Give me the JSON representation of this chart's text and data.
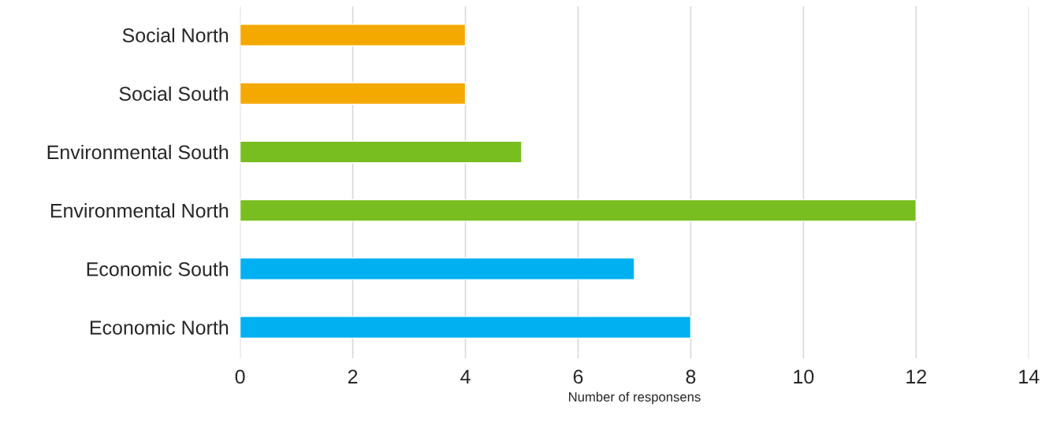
{
  "chart_data": {
    "type": "bar",
    "orientation": "horizontal",
    "categories": [
      "Social North",
      "Social South",
      "Environmental South",
      "Environmental North",
      "Economic South",
      "Economic North"
    ],
    "values": [
      4,
      4,
      5,
      12,
      7,
      8
    ],
    "colors": [
      "#f4a900",
      "#f4a900",
      "#78be20",
      "#78be20",
      "#00b0f0",
      "#00b0f0"
    ],
    "xlabel": "Number of responsens",
    "xlim": [
      0,
      14
    ],
    "xticks": [
      0,
      2,
      4,
      6,
      8,
      10,
      12,
      14
    ],
    "grid": "x",
    "legend": false
  }
}
